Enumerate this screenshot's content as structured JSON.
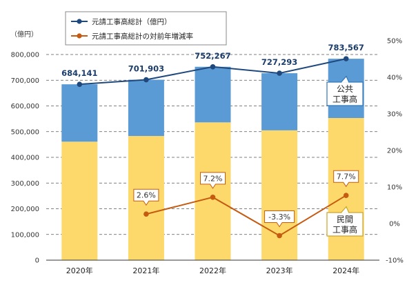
{
  "chart_data": {
    "type": "bar",
    "stacked": true,
    "categories": [
      "2020年",
      "2021年",
      "2022年",
      "2023年",
      "2024年"
    ],
    "series": [
      {
        "name": "民間\n工事高",
        "kind": "bar",
        "color": "#fdd96b",
        "values": [
          461000,
          483000,
          536000,
          505000,
          553000
        ]
      },
      {
        "name": "公共\n工事高",
        "kind": "bar",
        "color": "#5b9bd5",
        "values": [
          223141,
          218903,
          216267,
          222293,
          230567
        ]
      },
      {
        "name": "元請工事高総計（億円）",
        "kind": "line",
        "color": "#1f497d",
        "values": [
          684141,
          701903,
          752267,
          727293,
          783567
        ]
      },
      {
        "name": "元請工事高総計の対前年増減率",
        "kind": "line",
        "axis": "right",
        "color": "#c55a11",
        "values": [
          null,
          2.6,
          7.2,
          -3.3,
          7.7
        ]
      }
    ],
    "total_labels": [
      "684,141",
      "701,903",
      "752,267",
      "727,293",
      "783,567"
    ],
    "rate_labels": [
      "",
      "2.6%",
      "7.2%",
      "-3.3%",
      "7.7%"
    ],
    "ylabel": "（億円）",
    "ylim": [
      0,
      850000
    ],
    "y_ticks": [
      "0",
      "100,000",
      "200,000",
      "300,000",
      "400,000",
      "500,000",
      "600,000",
      "700,000",
      "800,000"
    ],
    "y2lim": [
      -10,
      50
    ],
    "y2_ticks": [
      "-10%",
      "0%",
      "10%",
      "20%",
      "30%",
      "40%",
      "50%"
    ],
    "grid": "dashed",
    "legend": "top-left"
  }
}
